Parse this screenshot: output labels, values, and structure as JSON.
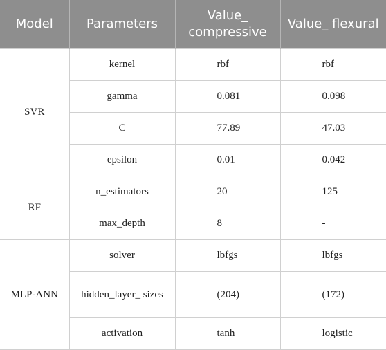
{
  "table": {
    "header": [
      "Model",
      "Parameters",
      "Value_ compressive",
      "Value_ flexural"
    ],
    "groups": [
      {
        "model": "SVR",
        "rows": [
          [
            "kernel",
            "rbf",
            "rbf"
          ],
          [
            "gamma",
            "0.081",
            "0.098"
          ],
          [
            "C",
            "77.89",
            "47.03"
          ],
          [
            "epsilon",
            "0.01",
            "0.042"
          ]
        ]
      },
      {
        "model": "RF",
        "rows": [
          [
            "n_estimators",
            "20",
            "125"
          ],
          [
            "max_depth",
            "8",
            "-"
          ]
        ]
      },
      {
        "model": "MLP-ANN",
        "rows": [
          [
            "solver",
            "lbfgs",
            "lbfgs"
          ],
          [
            "hidden_layer_ sizes",
            "(204)",
            "(172)"
          ],
          [
            "activation",
            "tanh",
            "logistic"
          ]
        ]
      }
    ]
  }
}
